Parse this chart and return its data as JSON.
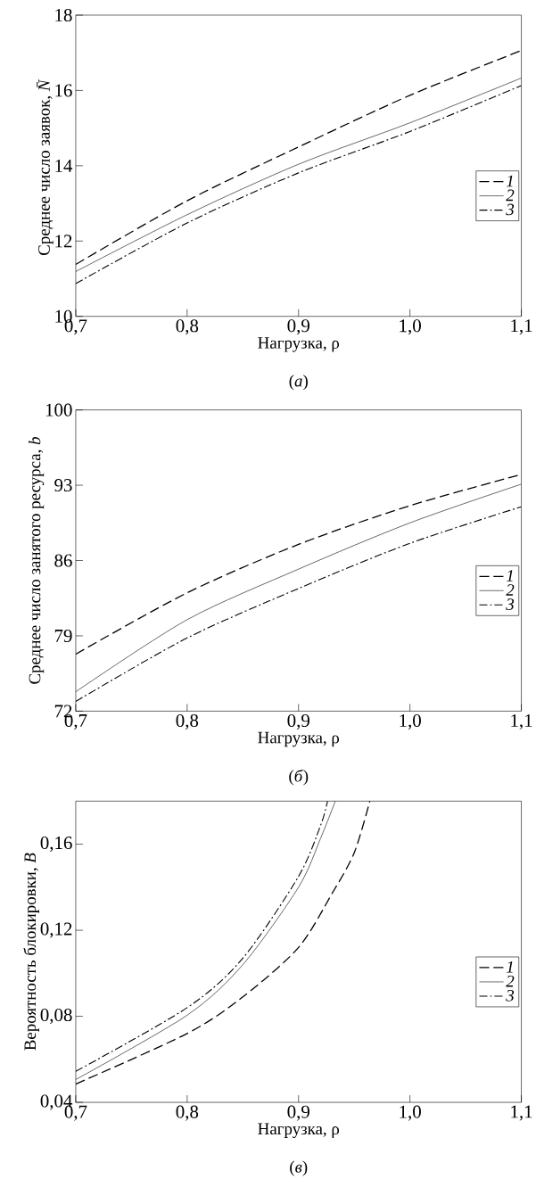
{
  "chart_data": [
    {
      "type": "line",
      "xlabel": "Нагрузка, ρ",
      "ylabel": "Среднее число заявок, *N̄*",
      "annotations": [
        "(*а*)"
      ],
      "xlim": [
        0.7,
        1.1
      ],
      "ylim": [
        10,
        18
      ],
      "xticks": [
        {
          "value": 0.7,
          "label": "0,7"
        },
        {
          "value": 0.8,
          "label": "0,8"
        },
        {
          "value": 0.9,
          "label": "0,9"
        },
        {
          "value": 1.0,
          "label": "1,0"
        },
        {
          "value": 1.1,
          "label": "1,1"
        }
      ],
      "yticks": [
        10,
        12,
        14,
        16,
        18
      ],
      "legend": "right",
      "grid": false,
      "series": [
        {
          "name": "1",
          "color": "#000000",
          "line_style": "dashed",
          "x": [
            0.7,
            0.8,
            0.9,
            1.0,
            1.1
          ],
          "values": [
            11.38,
            13.07,
            14.5,
            15.87,
            17.06
          ]
        },
        {
          "name": "2",
          "color": "#000000",
          "line_style": "solid",
          "x": [
            0.7,
            0.8,
            0.9,
            1.0,
            1.1
          ],
          "values": [
            11.19,
            12.7,
            14.04,
            15.14,
            16.33
          ]
        },
        {
          "name": "3",
          "color": "#000000",
          "line_style": "dashdot",
          "x": [
            0.7,
            0.8,
            0.9,
            1.0,
            1.1
          ],
          "values": [
            10.87,
            12.48,
            13.81,
            14.91,
            16.13
          ]
        }
      ]
    },
    {
      "type": "line",
      "xlabel": "Нагрузка, ρ",
      "ylabel": "Среднее число занятого ресурса, *b*",
      "annotations": [
        "(*б*)"
      ],
      "xlim": [
        0.7,
        1.1
      ],
      "ylim": [
        72,
        100
      ],
      "xticks": [
        {
          "value": 0.7,
          "label": "0,7"
        },
        {
          "value": 0.8,
          "label": "0,8"
        },
        {
          "value": 0.9,
          "label": "0,9"
        },
        {
          "value": 1.0,
          "label": "1,0"
        },
        {
          "value": 1.1,
          "label": "1,1"
        }
      ],
      "yticks": [
        72,
        79,
        86,
        93,
        100
      ],
      "legend": "right",
      "grid": false,
      "series": [
        {
          "name": "1",
          "color": "#000000",
          "line_style": "dashed",
          "x": [
            0.7,
            0.8,
            0.9,
            1.0,
            1.1
          ],
          "values": [
            77.3,
            83.0,
            87.5,
            91.1,
            94.0
          ]
        },
        {
          "name": "2",
          "color": "#000000",
          "line_style": "solid",
          "x": [
            0.7,
            0.8,
            0.9,
            1.0,
            1.1
          ],
          "values": [
            73.8,
            80.5,
            85.2,
            89.5,
            93.1
          ]
        },
        {
          "name": "3",
          "color": "#000000",
          "line_style": "dashdot",
          "x": [
            0.7,
            0.8,
            0.9,
            1.0,
            1.1
          ],
          "values": [
            72.9,
            78.8,
            83.4,
            87.6,
            91.0
          ]
        }
      ]
    },
    {
      "type": "line",
      "xlabel": "Нагрузка, ρ",
      "ylabel": "Вероятность блокировки, *B*",
      "annotations": [
        "(*в*)"
      ],
      "xlim": [
        0.7,
        1.1
      ],
      "ylim": [
        0.04,
        0.18
      ],
      "xticks": [
        {
          "value": 0.7,
          "label": "0,7"
        },
        {
          "value": 0.8,
          "label": "0,8"
        },
        {
          "value": 0.9,
          "label": "0,9"
        },
        {
          "value": 1.0,
          "label": "1,0"
        },
        {
          "value": 1.1,
          "label": "1,1"
        }
      ],
      "yticks": [
        {
          "value": 0.04,
          "label": "0,04"
        },
        {
          "value": 0.08,
          "label": "0,08"
        },
        {
          "value": 0.12,
          "label": "0,12"
        },
        {
          "value": 0.16,
          "label": "0,16"
        }
      ],
      "legend": "right",
      "grid": false,
      "series": [
        {
          "name": "1",
          "color": "#000000",
          "line_style": "dashed",
          "x": [
            0.7,
            0.8,
            0.85,
            0.9,
            0.93,
            0.95,
            0.964
          ],
          "values": [
            0.0485,
            0.072,
            0.089,
            0.112,
            0.137,
            0.156,
            0.18
          ]
        },
        {
          "name": "2",
          "color": "#000000",
          "line_style": "solid",
          "x": [
            0.7,
            0.8,
            0.85,
            0.9,
            0.92,
            0.933
          ],
          "values": [
            0.0506,
            0.0805,
            0.104,
            0.14,
            0.163,
            0.18
          ]
        },
        {
          "name": "3",
          "color": "#000000",
          "line_style": "dashdot",
          "x": [
            0.7,
            0.8,
            0.85,
            0.9,
            0.92,
            0.926
          ],
          "values": [
            0.0544,
            0.084,
            0.107,
            0.145,
            0.169,
            0.18
          ]
        }
      ]
    }
  ]
}
